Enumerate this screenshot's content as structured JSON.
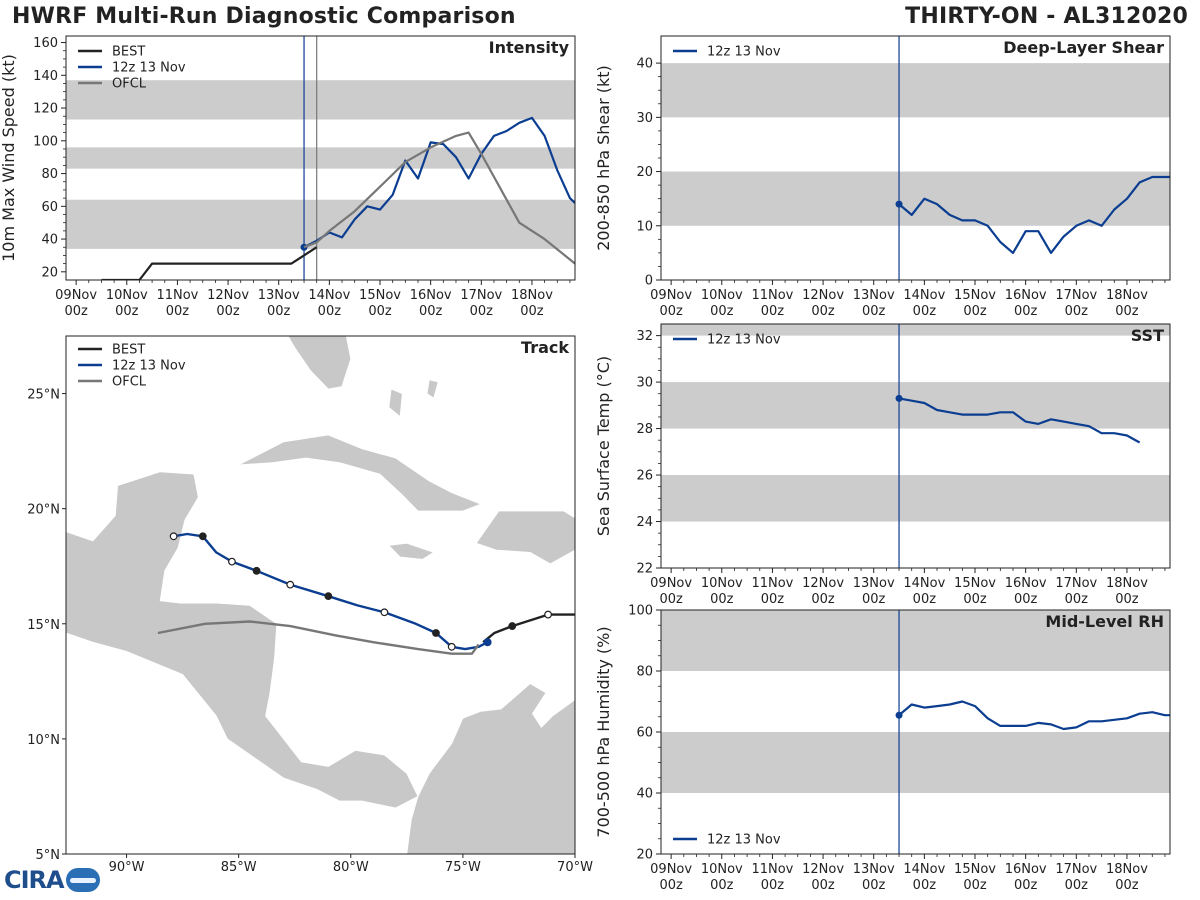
{
  "header": {
    "title_left": "HWRF Multi-Run Diagnostic Comparison",
    "title_right": "THIRTY-ON - AL312020"
  },
  "colors": {
    "best": "#222222",
    "run": "#0b3d91",
    "ofcl": "#777777",
    "band": "#cccccc"
  },
  "time_ticks": [
    "09Nov\n00z",
    "10Nov\n00z",
    "11Nov\n00z",
    "12Nov\n00z",
    "13Nov\n00z",
    "14Nov\n00z",
    "15Nov\n00z",
    "16Nov\n00z",
    "17Nov\n00z",
    "18Nov\n00z"
  ],
  "chart_data": [
    {
      "id": "intensity",
      "type": "line",
      "title": "Intensity",
      "ylabel": "10m Max Wind Speed (kt)",
      "xlim": [
        -0.2,
        9.85
      ],
      "ylim": [
        15,
        164
      ],
      "yticks": [
        20,
        40,
        60,
        80,
        100,
        120,
        140,
        160
      ],
      "bands": [
        [
          34,
          64
        ],
        [
          83,
          96
        ],
        [
          113,
          137
        ]
      ],
      "vlines": [
        {
          "x": 4.5,
          "color": "run"
        },
        {
          "x": 4.75,
          "color": "ofcl"
        }
      ],
      "legend": [
        "BEST",
        "12z 13 Nov",
        "OFCL"
      ],
      "series": [
        {
          "name": "BEST",
          "color": "best",
          "x": [
            0.5,
            0.75,
            1.0,
            1.25,
            1.5,
            1.75,
            2.0,
            2.25,
            2.5,
            2.75,
            3.0,
            3.25,
            3.5,
            3.75,
            4.0,
            4.25,
            4.5,
            4.75
          ],
          "y": [
            15,
            15,
            15,
            15,
            25,
            25,
            25,
            25,
            25,
            25,
            25,
            25,
            25,
            25,
            25,
            25,
            30,
            35
          ]
        },
        {
          "name": "12z 13 Nov",
          "color": "run",
          "marker_first": true,
          "x": [
            4.5,
            4.75,
            5.0,
            5.25,
            5.5,
            5.75,
            6.0,
            6.25,
            6.5,
            6.75,
            7.0,
            7.25,
            7.5,
            7.75,
            8.0,
            8.25,
            8.5,
            8.75,
            9.0,
            9.25,
            9.5,
            9.75,
            9.85
          ],
          "y": [
            35,
            39,
            44,
            41,
            52,
            60,
            58,
            67,
            88,
            77,
            99,
            98,
            90,
            77,
            92,
            103,
            106,
            111,
            114,
            103,
            82,
            65,
            62
          ]
        },
        {
          "name": "OFCL",
          "color": "ofcl",
          "x": [
            4.5,
            4.75,
            5.0,
            5.5,
            6.0,
            6.5,
            7.0,
            7.5,
            7.75,
            8.0,
            8.75,
            9.25,
            9.85
          ],
          "y": [
            35,
            38,
            45,
            57,
            72,
            87,
            96,
            103,
            105,
            92,
            50,
            40,
            25
          ]
        }
      ]
    },
    {
      "id": "shear",
      "type": "line",
      "title": "Deep-Layer Shear",
      "ylabel": "200-850 hPa Shear (kt)",
      "xlim": [
        -0.2,
        9.85
      ],
      "ylim": [
        0,
        45
      ],
      "yticks": [
        0,
        10,
        20,
        30,
        40
      ],
      "bands": [
        [
          10,
          20
        ],
        [
          30,
          40
        ]
      ],
      "vlines": [
        {
          "x": 4.5,
          "color": "run"
        }
      ],
      "legend": [
        "12z 13 Nov"
      ],
      "series": [
        {
          "name": "12z 13 Nov",
          "color": "run",
          "marker_first": true,
          "x": [
            4.5,
            4.75,
            5.0,
            5.25,
            5.5,
            5.75,
            6.0,
            6.25,
            6.5,
            6.75,
            7.0,
            7.25,
            7.5,
            7.75,
            8.0,
            8.25,
            8.5,
            8.75,
            9.0,
            9.25,
            9.5,
            9.75,
            9.85
          ],
          "y": [
            14,
            12,
            15,
            14,
            12,
            11,
            11,
            10,
            7,
            5,
            9,
            9,
            5,
            8,
            10,
            11,
            10,
            13,
            15,
            18,
            19,
            19,
            19
          ]
        }
      ]
    },
    {
      "id": "sst",
      "type": "line",
      "title": "SST",
      "ylabel": "Sea Surface Temp (°C)",
      "xlim": [
        -0.2,
        9.85
      ],
      "ylim": [
        22,
        32.5
      ],
      "yticks": [
        22,
        24,
        26,
        28,
        30,
        32
      ],
      "bands": [
        [
          24,
          26
        ],
        [
          28,
          30
        ],
        [
          32,
          32.5
        ]
      ],
      "vlines": [
        {
          "x": 4.5,
          "color": "run"
        }
      ],
      "legend": [
        "12z 13 Nov"
      ],
      "series": [
        {
          "name": "12z 13 Nov",
          "color": "run",
          "marker_first": true,
          "x": [
            4.5,
            4.75,
            5.0,
            5.25,
            5.5,
            5.75,
            6.0,
            6.25,
            6.5,
            6.75,
            7.0,
            7.25,
            7.5,
            7.75,
            8.0,
            8.25,
            8.5,
            8.75,
            9.0,
            9.25
          ],
          "y": [
            29.3,
            29.2,
            29.1,
            28.8,
            28.7,
            28.6,
            28.6,
            28.6,
            28.7,
            28.7,
            28.3,
            28.2,
            28.4,
            28.3,
            28.2,
            28.1,
            27.8,
            27.8,
            27.7,
            27.4
          ]
        }
      ]
    },
    {
      "id": "rh",
      "type": "line",
      "title": "Mid-Level RH",
      "ylabel": "700-500 hPa Humidity (%)",
      "xlim": [
        -0.2,
        9.85
      ],
      "ylim": [
        20,
        100
      ],
      "yticks": [
        20,
        40,
        60,
        80,
        100
      ],
      "bands": [
        [
          40,
          60
        ],
        [
          80,
          100
        ]
      ],
      "vlines": [
        {
          "x": 4.5,
          "color": "run"
        }
      ],
      "legend": [
        "12z 13 Nov"
      ],
      "legend_pos": "bottom-left",
      "series": [
        {
          "name": "12z 13 Nov",
          "color": "run",
          "marker_first": true,
          "x": [
            4.5,
            4.75,
            5.0,
            5.25,
            5.5,
            5.75,
            6.0,
            6.25,
            6.5,
            6.75,
            7.0,
            7.25,
            7.5,
            7.75,
            8.0,
            8.25,
            8.5,
            8.75,
            9.0,
            9.25,
            9.5,
            9.75,
            9.85
          ],
          "y": [
            65.5,
            69,
            68,
            68.5,
            69,
            70,
            68.5,
            64.5,
            62,
            62,
            62,
            63,
            62.5,
            61,
            61.5,
            63.5,
            63.5,
            64,
            64.5,
            66,
            66.5,
            65.5,
            65.5
          ]
        }
      ]
    },
    {
      "id": "track",
      "type": "scatter",
      "title": "Track",
      "xlim": [
        -92.7,
        -70
      ],
      "ylim": [
        5,
        27.5
      ],
      "xticks": [
        -90,
        -85,
        -80,
        -75,
        -70
      ],
      "xtick_labels": [
        "90°W",
        "85°W",
        "80°W",
        "75°W",
        "70°W"
      ],
      "yticks": [
        5,
        10,
        15,
        20,
        25
      ],
      "ytick_labels": [
        "5°N",
        "10°N",
        "15°N",
        "20°N",
        "25°N"
      ],
      "legend": [
        "BEST",
        "12z 13 Nov",
        "OFCL"
      ],
      "series": [
        {
          "name": "BEST",
          "color": "best",
          "lon": [
            -70.0,
            -71.2,
            -72.8,
            -73.6,
            -74.1
          ],
          "lat": [
            15.4,
            15.4,
            14.9,
            14.6,
            14.2
          ]
        },
        {
          "name": "12z 13 Nov",
          "color": "run",
          "lon": [
            -73.9,
            -74.3,
            -74.9,
            -75.5,
            -76.2,
            -77.1,
            -78.5,
            -79.7,
            -81.0,
            -82.7,
            -84.2,
            -85.3,
            -86.0,
            -86.6,
            -87.3,
            -87.9
          ],
          "lat": [
            14.2,
            14.0,
            13.9,
            14.0,
            14.6,
            15.0,
            15.5,
            15.8,
            16.2,
            16.7,
            17.3,
            17.7,
            18.1,
            18.8,
            18.9,
            18.8
          ],
          "open_markers": [
            -75.5,
            -78.5,
            -82.7,
            -85.3,
            -87.9
          ],
          "filled_markers": [
            -73.9,
            -76.2,
            -81.0,
            -84.2,
            -86.6
          ]
        },
        {
          "name": "OFCL",
          "color": "ofcl",
          "lon": [
            -74.3,
            -74.6,
            -75.5,
            -77.0,
            -79.0,
            -80.7,
            -82.7,
            -84.5,
            -86.5,
            -88.6
          ],
          "lat": [
            14.1,
            13.7,
            13.7,
            13.9,
            14.2,
            14.5,
            14.9,
            15.1,
            15.0,
            14.6
          ]
        }
      ]
    }
  ]
}
